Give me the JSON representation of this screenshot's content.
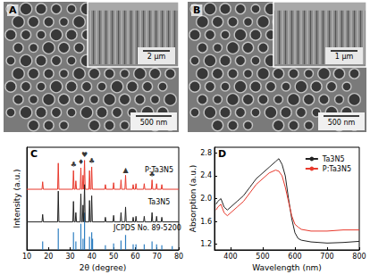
{
  "images": [
    {
      "label": "A",
      "scale_bar": "500 nm",
      "inset_scale_bar": "2 μm"
    },
    {
      "label": "B",
      "scale_bar": "500 nm",
      "inset_scale_bar": "1 μm"
    }
  ],
  "chart_data": [
    {
      "type": "line",
      "title": "C",
      "x_label": "2θ (degree)",
      "y_label": "Intensity (a.u.)",
      "xlim": [
        10,
        80
      ],
      "xticks": [
        10,
        20,
        30,
        40,
        50,
        60,
        70,
        80
      ],
      "ylim": [
        0,
        11
      ],
      "yticks": [],
      "tick_labels": "x",
      "grid": false,
      "series": [
        {
          "name": "P:Ta3N5",
          "color": "#e8392c",
          "x": [
            10,
            17.0,
            17.3,
            17.6,
            24.2,
            24.5,
            24.8,
            31.2,
            31.5,
            31.8,
            32.3,
            32.6,
            32.9,
            34.6,
            34.9,
            35.2,
            35.6,
            35.9,
            36.2,
            36.3,
            36.6,
            36.9,
            38.6,
            38.9,
            39.2,
            39.6,
            39.9,
            40.2,
            45.9,
            46.2,
            46.5,
            49.7,
            50.0,
            50.3,
            53.1,
            53.4,
            53.7,
            55.2,
            55.5,
            55.8,
            58.7,
            59.0,
            59.3,
            60.0,
            60.3,
            60.6,
            63.8,
            64.1,
            64.4,
            67.4,
            67.7,
            68.0,
            69.5,
            69.8,
            70.1,
            71.9,
            72.2,
            72.5,
            80
          ],
          "values": [
            6.5,
            6.5,
            7.3,
            6.5,
            6.5,
            9.3,
            6.5,
            6.5,
            8.5,
            6.5,
            6.5,
            7.4,
            6.5,
            6.5,
            8.8,
            6.5,
            6.5,
            8.0,
            6.5,
            6.5,
            9.6,
            6.5,
            6.5,
            8.5,
            6.5,
            6.5,
            8.9,
            6.5,
            6.5,
            7.0,
            6.5,
            6.5,
            7.2,
            6.5,
            6.5,
            7.5,
            6.5,
            6.5,
            8.0,
            6.5,
            6.5,
            7.0,
            6.5,
            6.5,
            7.1,
            6.5,
            6.5,
            7.1,
            6.5,
            6.5,
            7.5,
            6.5,
            6.5,
            7.1,
            6.5,
            6.5,
            7.0,
            6.5,
            6.5
          ]
        },
        {
          "name": "Ta3N5",
          "color": "#222222",
          "x": [
            10,
            17.0,
            17.3,
            17.6,
            24.2,
            24.5,
            24.8,
            31.2,
            31.5,
            31.8,
            32.3,
            32.6,
            32.9,
            34.6,
            34.9,
            35.2,
            35.6,
            35.9,
            36.2,
            36.3,
            36.6,
            36.9,
            38.6,
            38.9,
            39.2,
            39.6,
            39.9,
            40.2,
            45.9,
            46.2,
            46.5,
            49.7,
            50.0,
            50.3,
            53.1,
            53.4,
            53.7,
            55.2,
            55.5,
            55.8,
            58.7,
            59.0,
            59.3,
            60.0,
            60.3,
            60.6,
            63.8,
            64.1,
            64.4,
            67.4,
            67.7,
            68.0,
            69.5,
            69.8,
            70.1,
            71.9,
            72.2,
            72.5,
            80
          ],
          "values": [
            3,
            3,
            3.8,
            3,
            3,
            6.3,
            3,
            3,
            5.2,
            3,
            3,
            4.0,
            3,
            3,
            6.0,
            3,
            3,
            4.8,
            3,
            3,
            7.0,
            3,
            3,
            5.3,
            3,
            3,
            5.8,
            3,
            3,
            3.5,
            3,
            3,
            3.7,
            3,
            3,
            4.0,
            3,
            3,
            4.6,
            3,
            3,
            3.5,
            3,
            3,
            3.6,
            3,
            3,
            3.6,
            3,
            3,
            4.0,
            3,
            3,
            3.6,
            3,
            3,
            3.5,
            3,
            3
          ]
        },
        {
          "name": "JCPDS No. 89-5200",
          "type": "bar",
          "color": "#2f7fc1",
          "x": [
            17.3,
            24.5,
            31.5,
            32.6,
            34.9,
            35.9,
            36.6,
            38.9,
            39.9,
            40.3,
            46.2,
            50.0,
            53.4,
            55.5,
            59.0,
            60.3,
            64.1,
            67.7,
            69.8,
            72.2,
            77.0
          ],
          "values": [
            0.9,
            2.3,
            1.9,
            0.9,
            2.8,
            1.2,
            4.0,
            1.4,
            1.9,
            1.2,
            0.5,
            0.7,
            1.0,
            1.6,
            0.6,
            0.6,
            0.6,
            0.9,
            0.6,
            0.5,
            0.4
          ]
        }
      ],
      "annotations": [
        {
          "x": 31.5,
          "y": 9.1,
          "text": "♣"
        },
        {
          "x": 34.9,
          "y": 9.4,
          "text": "♦"
        },
        {
          "x": 36.6,
          "y": 10.2,
          "text": "♥"
        },
        {
          "x": 39.9,
          "y": 9.5,
          "text": "♣"
        },
        {
          "x": 55.5,
          "y": 8.6,
          "text": "▲"
        },
        {
          "x": 67.7,
          "y": 8.1,
          "text": "♣"
        }
      ]
    },
    {
      "type": "line",
      "title": "D",
      "x_label": "Wavelength (nm)",
      "y_label": "Absorption (a.u.)",
      "xlim": [
        350,
        800
      ],
      "xticks": [
        400,
        500,
        600,
        700,
        800
      ],
      "ylim": [
        1.1,
        2.9
      ],
      "yticks": [
        1.2,
        1.6,
        {
          "value": 2,
          "label": "2.0"
        },
        2.4,
        2.8
      ],
      "grid": false,
      "legend": "upper right",
      "series": [
        {
          "name": "Ta3N5",
          "color": "#222222",
          "x": [
            355,
            360,
            370,
            380,
            390,
            400,
            420,
            440,
            460,
            480,
            500,
            520,
            540,
            550,
            560,
            570,
            580,
            590,
            600,
            610,
            620,
            650,
            700,
            750,
            800
          ],
          "values": [
            1.9,
            1.95,
            2.0,
            1.85,
            1.8,
            1.85,
            1.95,
            2.05,
            2.2,
            2.35,
            2.45,
            2.55,
            2.65,
            2.7,
            2.6,
            2.4,
            2.0,
            1.65,
            1.4,
            1.3,
            1.27,
            1.24,
            1.22,
            1.23,
            1.25
          ]
        },
        {
          "name": "P:Ta3N5",
          "color": "#e8392c",
          "x": [
            355,
            360,
            370,
            380,
            390,
            400,
            420,
            440,
            460,
            480,
            500,
            520,
            540,
            550,
            560,
            570,
            580,
            590,
            600,
            610,
            620,
            650,
            700,
            750,
            800
          ],
          "values": [
            1.8,
            1.85,
            1.9,
            1.75,
            1.7,
            1.75,
            1.85,
            1.95,
            2.1,
            2.25,
            2.35,
            2.45,
            2.5,
            2.48,
            2.4,
            2.2,
            1.95,
            1.7,
            1.55,
            1.5,
            1.46,
            1.43,
            1.43,
            1.45,
            1.45
          ]
        }
      ]
    }
  ]
}
